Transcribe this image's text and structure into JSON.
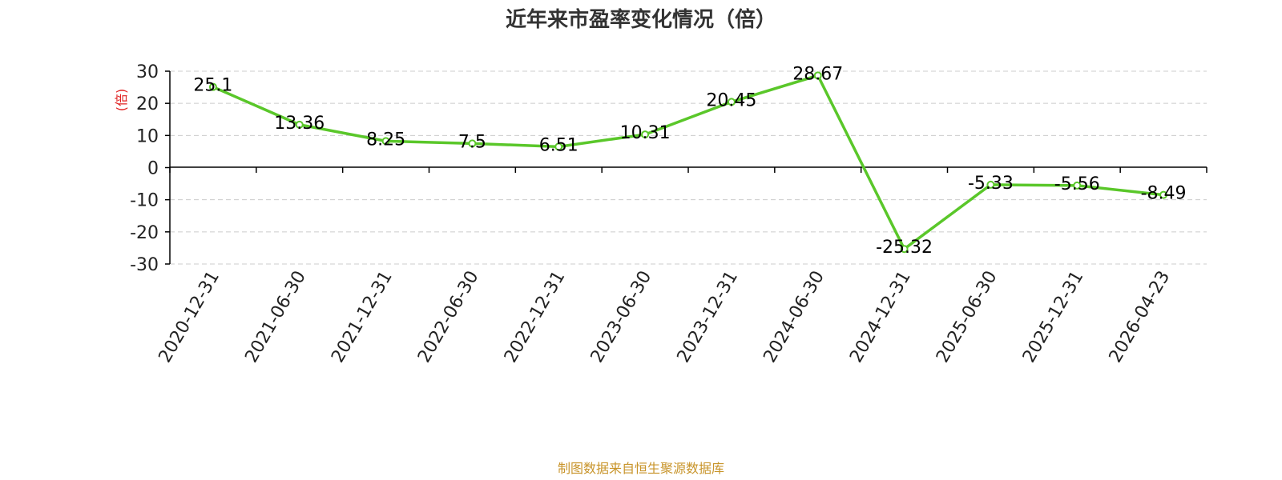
{
  "chart_data": {
    "type": "line",
    "title": "近年来市盈率变化情况（倍）",
    "ylabel": "(倍)",
    "xlabel": "",
    "source": "制图数据来自恒生聚源数据库",
    "categories": [
      "2020-12-31",
      "2021-06-30",
      "2021-12-31",
      "2022-06-30",
      "2022-12-31",
      "2023-06-30",
      "2023-12-31",
      "2024-06-30",
      "2024-12-31",
      "2025-06-30",
      "2025-12-31",
      "2026-04-23"
    ],
    "series": [
      {
        "values": [
          25.1,
          13.36,
          8.25,
          7.5,
          6.51,
          10.31,
          20.45,
          28.67,
          -25.32,
          -5.33,
          -5.56,
          -8.49
        ]
      }
    ],
    "ylim": [
      -30,
      30
    ],
    "yticks": [
      30,
      20,
      10,
      0,
      -10,
      -20,
      -30
    ],
    "grid": true,
    "colors": {
      "line": "#5ac72a",
      "ylabel": "#e02020",
      "source": "#c8942a",
      "grid": "#cccccc",
      "axis": "#000000"
    }
  }
}
